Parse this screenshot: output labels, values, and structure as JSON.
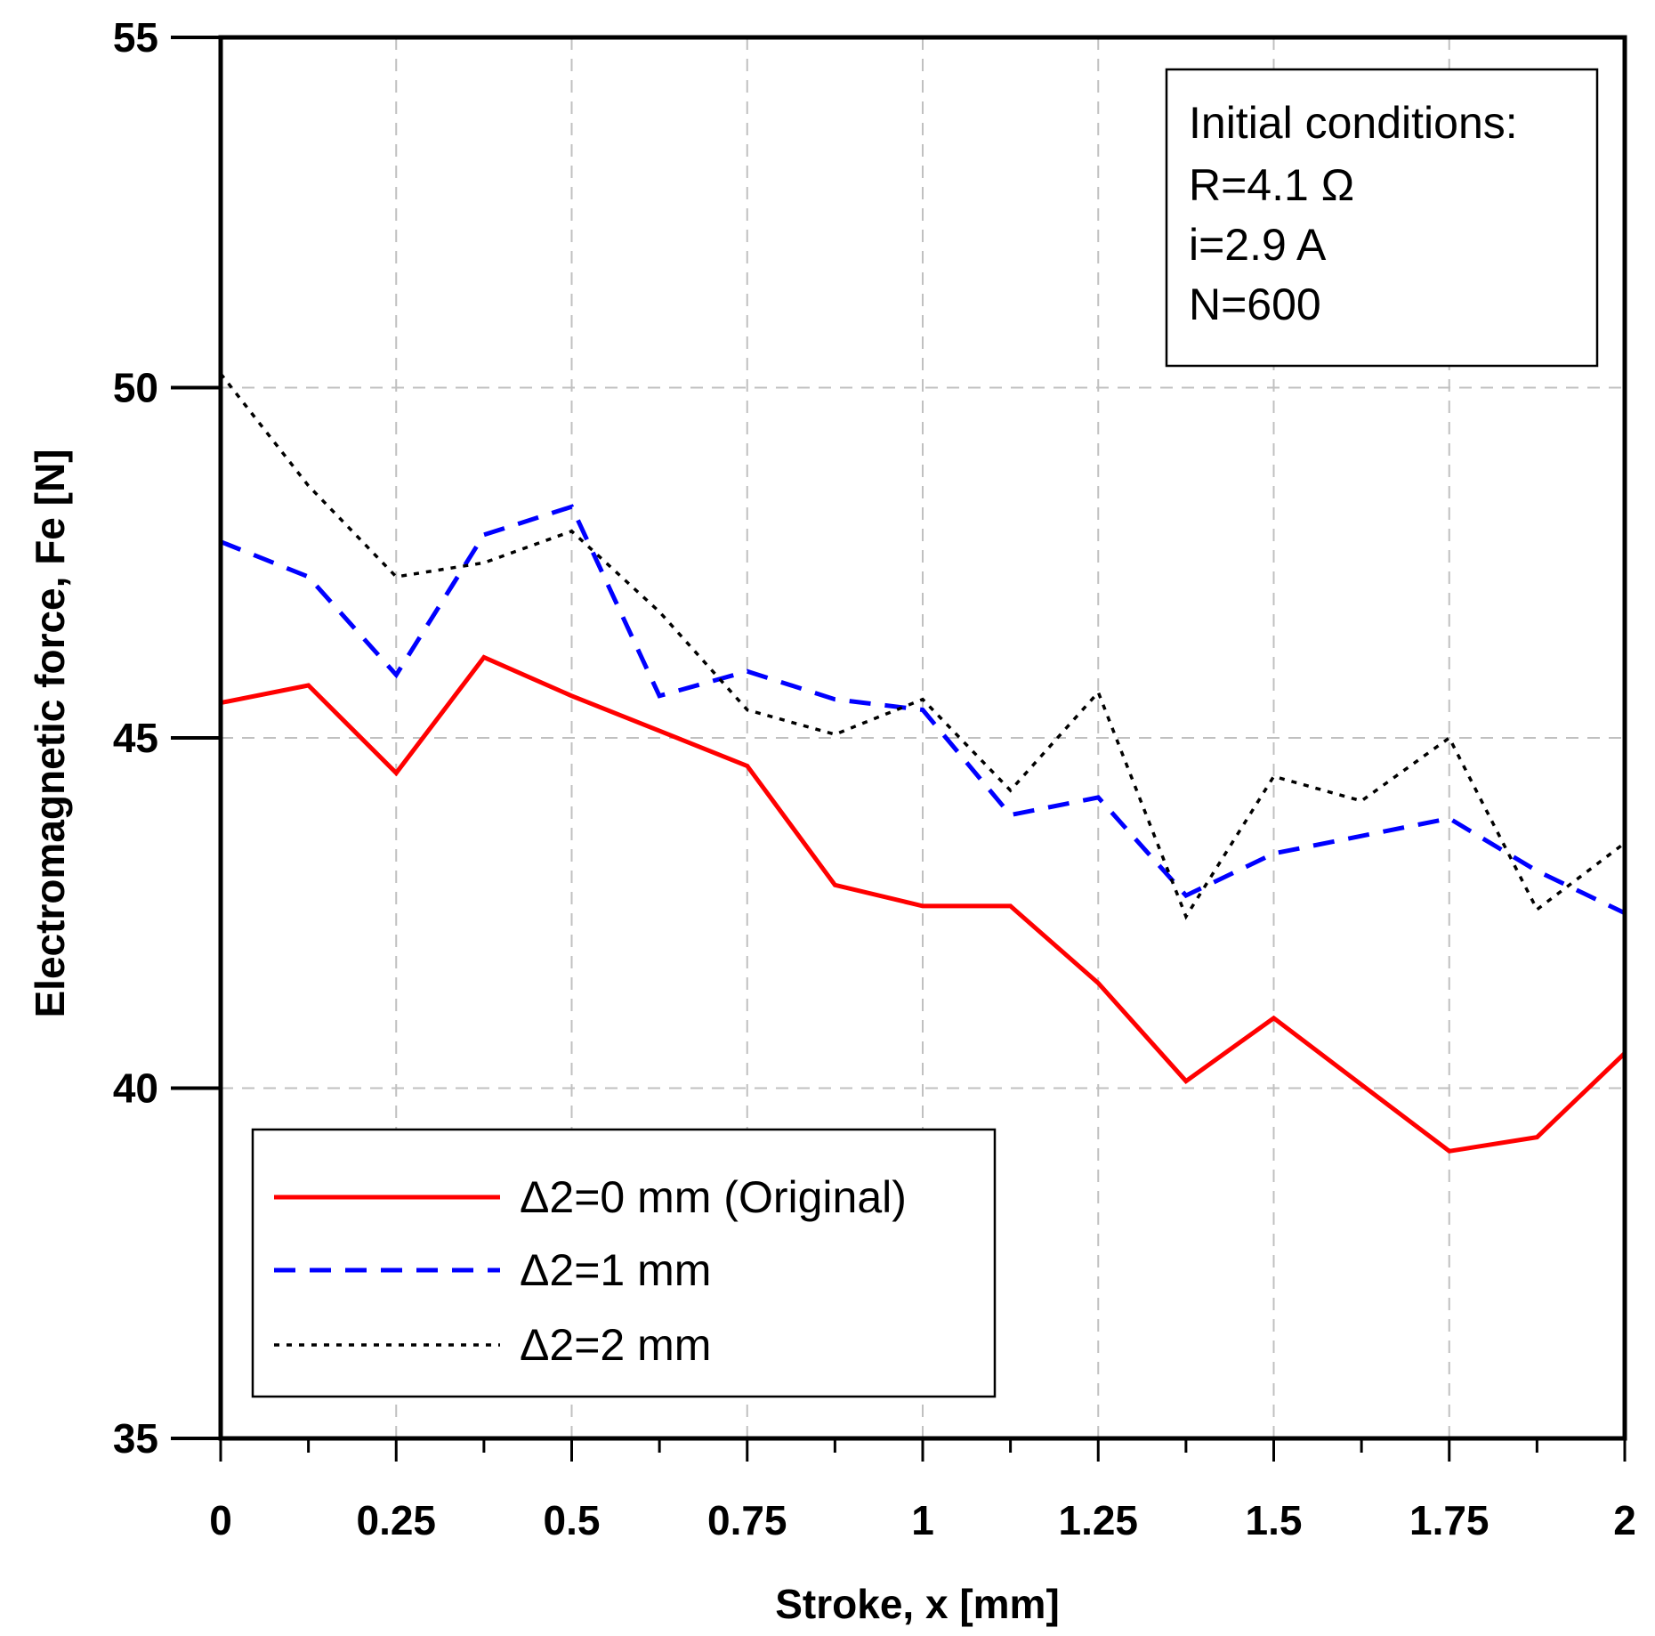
{
  "chart_data": {
    "type": "line",
    "xlabel": "Stroke, x [mm]",
    "ylabel": "Electromagnetic force, Fe [N]",
    "xlim": [
      0,
      2
    ],
    "ylim": [
      35,
      55
    ],
    "x_ticks": [
      0,
      0.25,
      0.5,
      0.75,
      1,
      1.25,
      1.5,
      1.75,
      2
    ],
    "x_tick_labels": [
      "0",
      "0.25",
      "0.5",
      "0.75",
      "1",
      "1.25",
      "1.5",
      "1.75",
      "2"
    ],
    "x_minor_ticks": [
      0.125,
      0.375,
      0.625,
      0.875,
      1.125,
      1.375,
      1.625,
      1.875
    ],
    "y_ticks": [
      35,
      40,
      45,
      50,
      55
    ],
    "y_tick_labels": [
      "35",
      "40",
      "45",
      "50",
      "55"
    ],
    "grid": true,
    "x": [
      0,
      0.125,
      0.25,
      0.375,
      0.5,
      0.625,
      0.75,
      0.875,
      1,
      1.125,
      1.25,
      1.375,
      1.5,
      1.625,
      1.75,
      1.875,
      2
    ],
    "series": [
      {
        "name": "Δ2=0 mm (Original)",
        "color": "#ff0000",
        "style": "solid",
        "values": [
          45.5,
          45.75,
          44.5,
          46.15,
          45.6,
          45.1,
          44.6,
          42.9,
          42.6,
          42.6,
          41.5,
          40.1,
          41.0,
          40.05,
          39.1,
          39.3,
          40.5
        ]
      },
      {
        "name": "Δ2=1 mm",
        "color": "#0000ff",
        "style": "dashed",
        "values": [
          47.8,
          47.3,
          45.9,
          47.9,
          48.3,
          45.6,
          45.95,
          45.55,
          45.4,
          43.9,
          44.15,
          42.75,
          43.35,
          43.6,
          43.85,
          43.1,
          42.5
        ]
      },
      {
        "name": "Δ2=2 mm",
        "color": "#000000",
        "style": "dotted",
        "values": [
          50.2,
          48.6,
          47.3,
          47.5,
          47.95,
          46.8,
          45.4,
          45.05,
          45.55,
          44.25,
          45.65,
          42.45,
          44.45,
          44.1,
          45.0,
          42.55,
          43.5
        ]
      }
    ],
    "legend": {
      "position": "bottom-left",
      "entries": [
        "Δ2=0 mm (Original)",
        "Δ2=1 mm",
        "Δ2=2 mm"
      ]
    },
    "annotation": {
      "position": "top-right",
      "lines": [
        "Initial conditions:",
        "R=4.1 Ω",
        "i=2.9 A",
        "N=600"
      ]
    }
  }
}
